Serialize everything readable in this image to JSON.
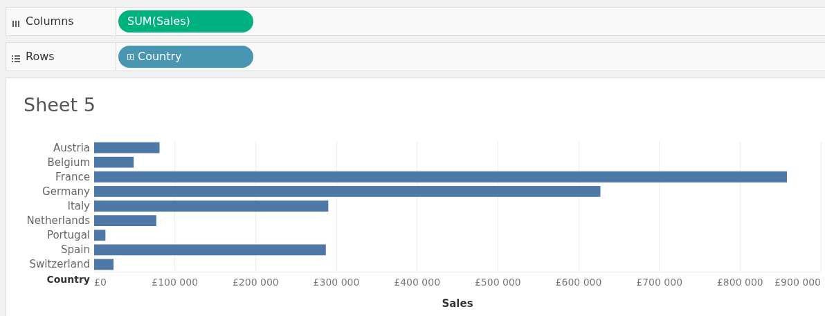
{
  "chart_data": {
    "type": "bar",
    "orientation": "horizontal",
    "title": "Sheet 5",
    "xlabel": "Sales",
    "ylabel": "Country",
    "annotations": [
      "Columns",
      "SUM(Sales)",
      "Rows",
      "Country"
    ],
    "categories": [
      "Austria",
      "Belgium",
      "France",
      "Germany",
      "Italy",
      "Netherlands",
      "Portugal",
      "Spain",
      "Switzerland"
    ],
    "values": [
      81000,
      49000,
      858000,
      627000,
      290000,
      77000,
      14000,
      287000,
      24000
    ],
    "color": "#4e79a7",
    "xlim": [
      0,
      900000
    ],
    "xticks": [
      {
        "value": 0,
        "label": "£0"
      },
      {
        "value": 100000,
        "label": "£100 000"
      },
      {
        "value": 200000,
        "label": "£200 000"
      },
      {
        "value": 300000,
        "label": "£300 000"
      },
      {
        "value": 400000,
        "label": "£400 000"
      },
      {
        "value": 500000,
        "label": "£500 000"
      },
      {
        "value": 600000,
        "label": "£600 000"
      },
      {
        "value": 700000,
        "label": "£700 000"
      },
      {
        "value": 800000,
        "label": "£800 000"
      },
      {
        "value": 900000,
        "label": "£900 000"
      }
    ],
    "grid": "x"
  }
}
